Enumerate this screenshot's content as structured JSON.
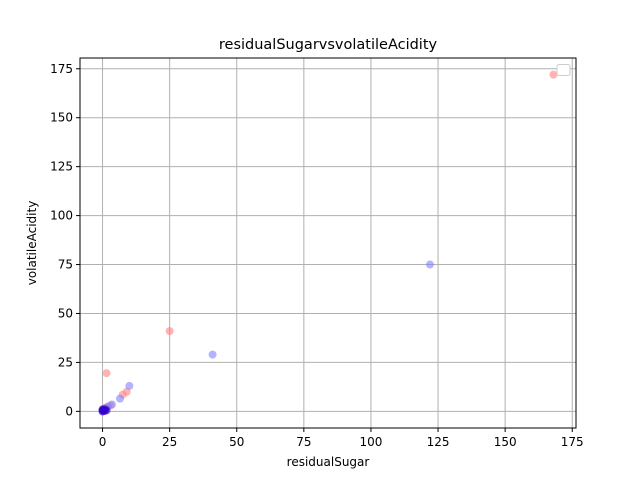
{
  "chart_data": {
    "type": "scatter",
    "title": "residualSugarvsvolatileAcidity",
    "xlabel": "residualSugar",
    "ylabel": "volatileAcidity",
    "xlim": [
      -8.4,
      176.4
    ],
    "ylim": [
      -8.5,
      180.5
    ],
    "xticks": [
      "0",
      "25",
      "50",
      "75",
      "100",
      "125",
      "150",
      "175"
    ],
    "yticks": [
      "0",
      "25",
      "50",
      "75",
      "100",
      "125",
      "150",
      "175"
    ],
    "grid": true,
    "legend": "top-right",
    "series": [
      {
        "color": "#ff8080",
        "points": [
          [
            168,
            172
          ],
          [
            25,
            41
          ],
          [
            1.5,
            19.5
          ],
          [
            9,
            10
          ],
          [
            7.5,
            8.5
          ],
          [
            3,
            3
          ],
          [
            1.5,
            2
          ],
          [
            0.5,
            1.5
          ],
          [
            0,
            0.5
          ]
        ]
      },
      {
        "color": "#8080ff",
        "points": [
          [
            122,
            75
          ],
          [
            41,
            29
          ],
          [
            10,
            13
          ],
          [
            6.5,
            6.5
          ],
          [
            3.5,
            3.5
          ],
          [
            2,
            2.5
          ],
          [
            1,
            1.5
          ],
          [
            0.5,
            1
          ],
          [
            0,
            0.5
          ],
          [
            0,
            0
          ],
          [
            0.2,
            0.2
          ]
        ]
      },
      {
        "color": "#3300cc",
        "points": [
          [
            0,
            0
          ],
          [
            0.5,
            0.5
          ],
          [
            1,
            1
          ],
          [
            0,
            1
          ],
          [
            1.5,
            0.5
          ],
          [
            0.8,
            0.2
          ],
          [
            0.2,
            0.8
          ]
        ]
      }
    ]
  }
}
